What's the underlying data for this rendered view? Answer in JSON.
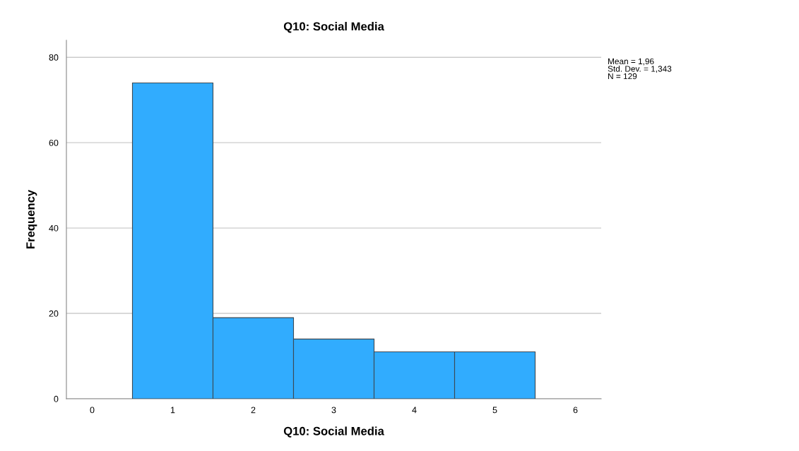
{
  "chart_data": {
    "type": "histogram",
    "title": "Q10: Social Media",
    "xlabel": "Q10: Social Media",
    "ylabel": "Frequency",
    "bins": [
      0.5,
      1.5,
      2.5,
      3.5,
      4.5,
      5.5
    ],
    "values": [
      74,
      19,
      14,
      11,
      11
    ],
    "color": "#31acfe",
    "xlim": [
      -0.32,
      6.32
    ],
    "xticks": [
      0,
      1,
      2,
      3,
      4,
      5,
      6
    ],
    "ylim": [
      0,
      84
    ],
    "yticks": [
      0,
      20,
      40,
      60,
      80
    ],
    "grid": "y",
    "annotations": [
      "Mean = 1,96\nStd. Dev. = 1,343\nN = 129"
    ]
  }
}
